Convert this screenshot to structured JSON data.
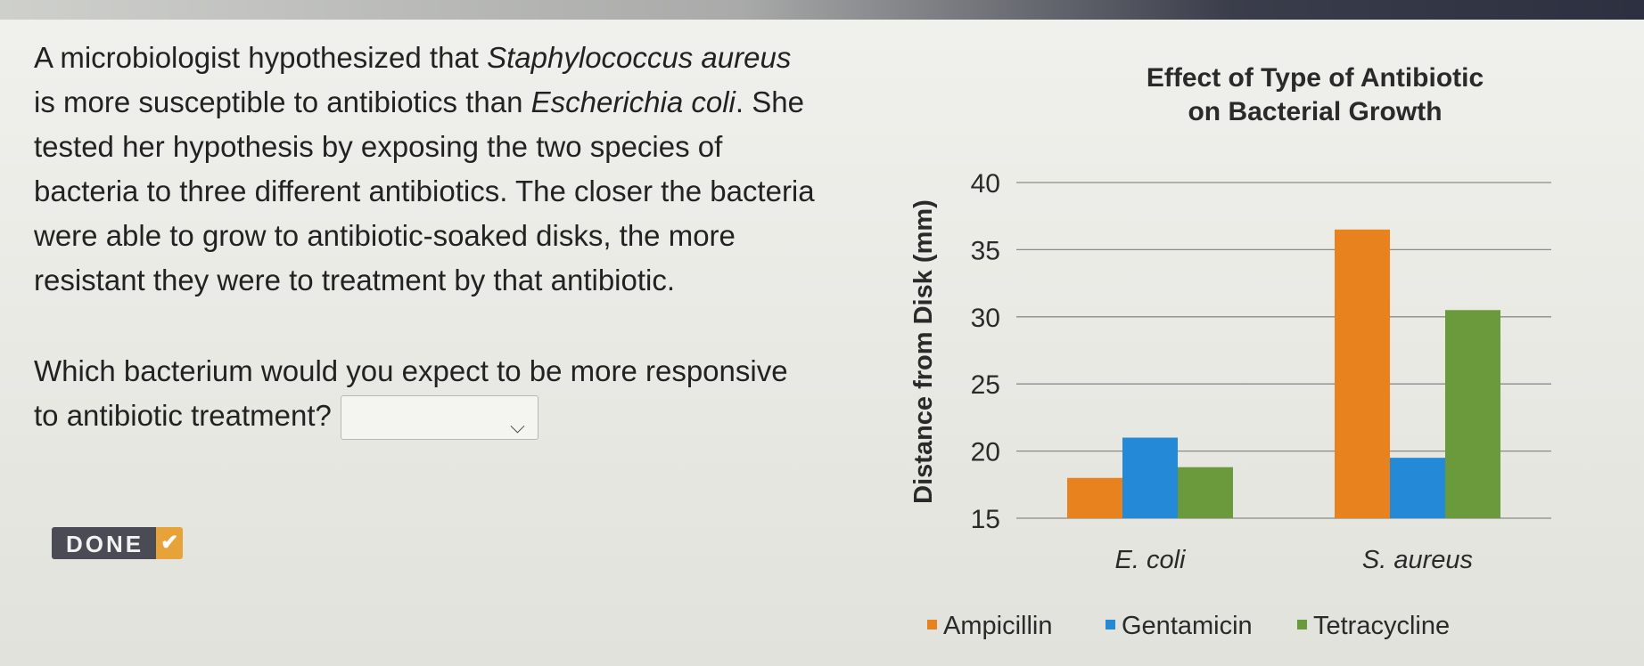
{
  "question": {
    "paragraph_1_start": "A microbiologist hypothesized that",
    "species_a": "Staphylococcus aureus",
    "paragraph_1_mid": " is more susceptible to antibiotics than ",
    "species_b": "Escherichia coli",
    "paragraph_1_end": ". She tested her hypothesis by exposing the two species of bacteria to three different antibiotics. The closer the bacteria were able to grow to antibiotic-soaked disks, the more resistant they were to treatment by that antibiotic.",
    "prompt": "Which bacterium would you expect to be more responsive to antibiotic treatment?",
    "dropdown_value": ""
  },
  "done_button": {
    "label": "DONE",
    "icon": "checkmark-icon"
  },
  "chart_data": {
    "type": "bar",
    "title": "Effect of Type of Antibiotic on Bacterial Growth",
    "xlabel": "",
    "ylabel": "Distance from Disk (mm)",
    "ylim": [
      15,
      40
    ],
    "yticks": [
      15,
      20,
      25,
      30,
      35,
      40
    ],
    "categories": [
      "E. coli",
      "S. aureus"
    ],
    "series": [
      {
        "name": "Ampicillin",
        "color": "#e8821e",
        "values": [
          18,
          36.5
        ]
      },
      {
        "name": "Gentamicin",
        "color": "#2489d6",
        "values": [
          21,
          19.5
        ]
      },
      {
        "name": "Tetracycline",
        "color": "#6b9a3c",
        "values": [
          18.8,
          30.5
        ]
      }
    ],
    "grid": true,
    "legend_position": "bottom"
  }
}
